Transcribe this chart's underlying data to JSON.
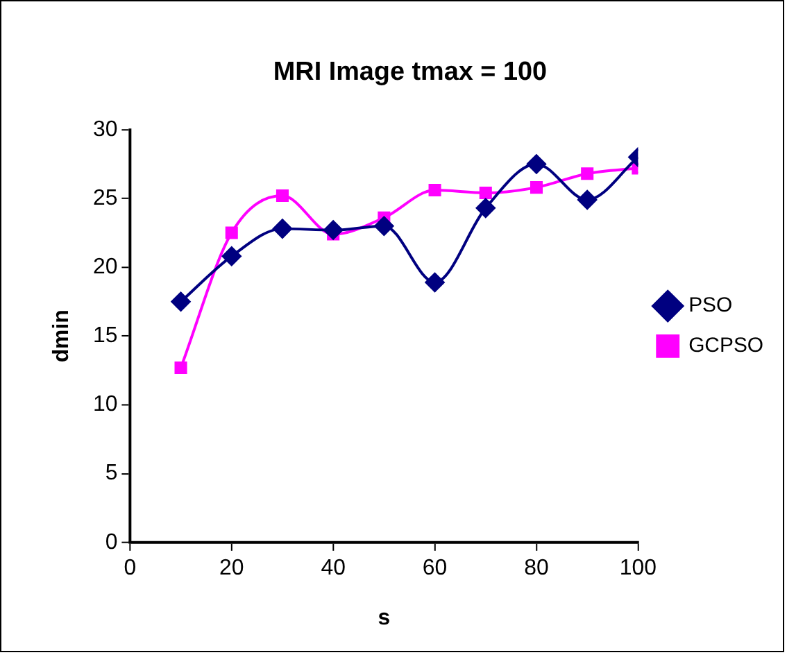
{
  "chart_data": {
    "type": "line",
    "title": "MRI Image tmax = 100",
    "xlabel": "s",
    "ylabel": "dmin",
    "x": [
      10,
      20,
      30,
      40,
      50,
      60,
      70,
      80,
      90,
      100
    ],
    "series": [
      {
        "name": "PSO",
        "color": "#000080",
        "marker": "diamond",
        "values": [
          17.5,
          20.8,
          22.8,
          22.7,
          23.0,
          18.9,
          24.3,
          27.5,
          24.9,
          28.0
        ]
      },
      {
        "name": "GCPSO",
        "color": "#ff00ff",
        "marker": "square",
        "values": [
          12.7,
          22.5,
          25.2,
          22.4,
          23.6,
          25.6,
          25.4,
          25.8,
          26.8,
          27.2
        ]
      }
    ],
    "xlim": [
      0,
      100
    ],
    "xticks": [
      0,
      20,
      40,
      60,
      80,
      100
    ],
    "ylim": [
      0,
      30
    ],
    "yticks": [
      0,
      5,
      10,
      15,
      20,
      25,
      30
    ],
    "legend": "right",
    "grid": false
  }
}
